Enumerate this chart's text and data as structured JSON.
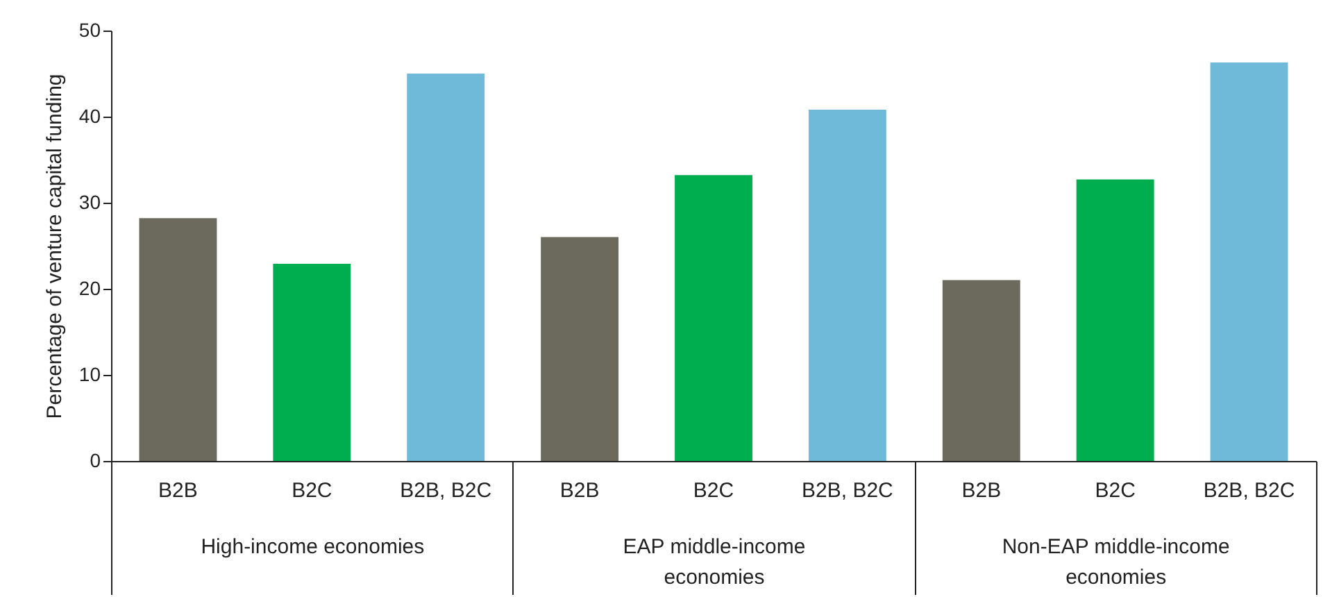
{
  "chart_data": {
    "type": "bar",
    "ylabel": "Percentage of venture capital funding",
    "categories": [
      "High-income economies",
      "EAP middle-income economies",
      "Non-EAP middle-income economies"
    ],
    "series": [
      {
        "name": "B2B",
        "color": "#6b6a5c",
        "values": [
          28.2,
          26,
          21
        ]
      },
      {
        "name": "B2C",
        "color": "#00ad4f",
        "values": [
          22.9,
          33.2,
          32.7
        ]
      },
      {
        "name": "B2B, B2C",
        "color": "#6fb9d9",
        "values": [
          45,
          40.8,
          46.3
        ]
      }
    ],
    "ylim": [
      0,
      50
    ],
    "yticks": [
      0,
      10,
      20,
      30,
      40,
      50
    ]
  }
}
